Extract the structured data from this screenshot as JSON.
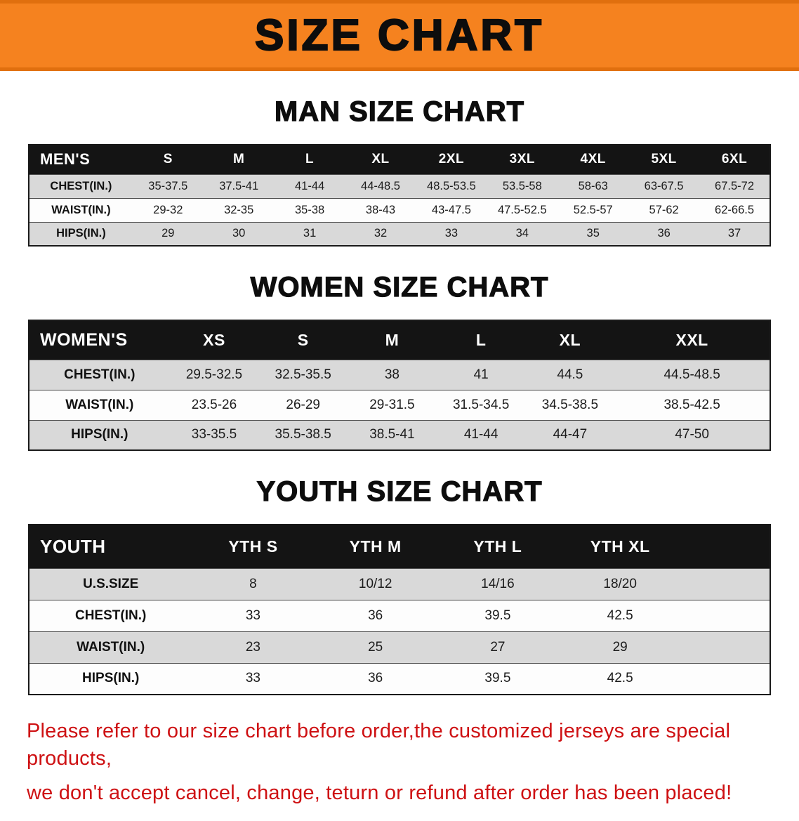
{
  "banner": {
    "title": "SIZE CHART"
  },
  "colors": {
    "banner_bg": "#f5821f",
    "table_header_bg": "#141414",
    "row_alt_gray": "#d9d9d9",
    "note_red": "#ce1113"
  },
  "sections": [
    {
      "id": "men",
      "heading": "MAN SIZE CHART",
      "table": {
        "label_header": "MEN'S",
        "columns": [
          "S",
          "M",
          "L",
          "XL",
          "2XL",
          "3XL",
          "4XL",
          "5XL",
          "6XL"
        ],
        "rows": [
          {
            "label": "CHEST(IN.)",
            "values": [
              "35-37.5",
              "37.5-41",
              "41-44",
              "44-48.5",
              "48.5-53.5",
              "53.5-58",
              "58-63",
              "63-67.5",
              "67.5-72"
            ]
          },
          {
            "label": "WAIST(IN.)",
            "values": [
              "29-32",
              "32-35",
              "35-38",
              "38-43",
              "43-47.5",
              "47.5-52.5",
              "52.5-57",
              "57-62",
              "62-66.5"
            ]
          },
          {
            "label": "HIPS(IN.)",
            "values": [
              "29",
              "30",
              "31",
              "32",
              "33",
              "34",
              "35",
              "36",
              "37"
            ]
          }
        ]
      }
    },
    {
      "id": "women",
      "heading": "WOMEN SIZE CHART",
      "table": {
        "label_header": "WOMEN'S",
        "columns": [
          "XS",
          "S",
          "M",
          "L",
          "XL",
          "XXL"
        ],
        "rows": [
          {
            "label": "CHEST(IN.)",
            "values": [
              "29.5-32.5",
              "32.5-35.5",
              "38",
              "41",
              "44.5",
              "44.5-48.5"
            ]
          },
          {
            "label": "WAIST(IN.)",
            "values": [
              "23.5-26",
              "26-29",
              "29-31.5",
              "31.5-34.5",
              "34.5-38.5",
              "38.5-42.5"
            ]
          },
          {
            "label": "HIPS(IN.)",
            "values": [
              "33-35.5",
              "35.5-38.5",
              "38.5-41",
              "41-44",
              "44-47",
              "47-50"
            ]
          }
        ]
      }
    },
    {
      "id": "youth",
      "heading": "YOUTH SIZE CHART",
      "table": {
        "label_header": "YOUTH",
        "columns": [
          "YTH S",
          "YTH M",
          "YTH L",
          "YTH XL"
        ],
        "rows": [
          {
            "label": "U.S.SIZE",
            "values": [
              "8",
              "10/12",
              "14/16",
              "18/20"
            ]
          },
          {
            "label": "CHEST(IN.)",
            "values": [
              "33",
              "36",
              "39.5",
              "42.5"
            ]
          },
          {
            "label": "WAIST(IN.)",
            "values": [
              "23",
              "25",
              "27",
              "29"
            ]
          },
          {
            "label": "HIPS(IN.)",
            "values": [
              "33",
              "36",
              "39.5",
              "42.5"
            ]
          }
        ]
      }
    }
  ],
  "note": {
    "line1": "Please refer to our size chart before order,the customized jerseys are special products,",
    "line2": "we don't accept cancel, change, teturn or refund after order has been placed!"
  }
}
